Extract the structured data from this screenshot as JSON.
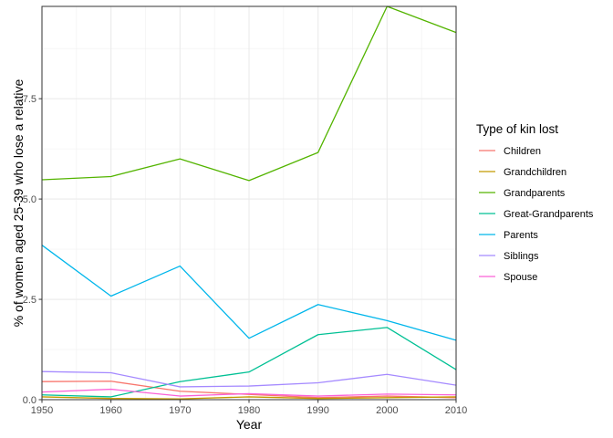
{
  "chart_data": {
    "type": "line",
    "xlabel": "Year",
    "ylabel": "% of women aged 25-39 who lose a relative",
    "xlim": [
      1950,
      2010
    ],
    "ylim": [
      0,
      9.8
    ],
    "x_ticks": [
      1950,
      1960,
      1970,
      1980,
      1990,
      2000,
      2010
    ],
    "y_ticks": [
      0,
      2.5,
      5,
      7.5
    ],
    "y_tick_labels": [
      "0.0",
      "2.5",
      "5.0",
      "7.5"
    ],
    "grid": true,
    "legend": {
      "title": "Type of kin lost",
      "position": "right"
    },
    "x": [
      1950,
      1960,
      1970,
      1980,
      1990,
      2000,
      2010
    ],
    "series": [
      {
        "name": "Children",
        "color": "#F8766D",
        "values": [
          0.45,
          0.46,
          0.21,
          0.13,
          0.05,
          0.09,
          0.05
        ]
      },
      {
        "name": "Grandchildren",
        "color": "#C49A00",
        "values": [
          0.07,
          0.03,
          0.02,
          0.07,
          0.03,
          0.05,
          0.07
        ]
      },
      {
        "name": "Grandparents",
        "color": "#53B400",
        "values": [
          5.48,
          5.56,
          6.0,
          5.46,
          6.16,
          9.8,
          9.15
        ]
      },
      {
        "name": "Great-Grandparents",
        "color": "#00C094",
        "values": [
          0.12,
          0.07,
          0.45,
          0.69,
          1.62,
          1.8,
          0.75
        ]
      },
      {
        "name": "Parents",
        "color": "#00B6EB",
        "values": [
          3.85,
          2.58,
          3.33,
          1.53,
          2.37,
          1.97,
          1.48
        ]
      },
      {
        "name": "Siblings",
        "color": "#A58AFF",
        "values": [
          0.7,
          0.67,
          0.32,
          0.34,
          0.42,
          0.63,
          0.36
        ]
      },
      {
        "name": "Spouse",
        "color": "#FB61D7",
        "values": [
          0.19,
          0.26,
          0.09,
          0.15,
          0.09,
          0.14,
          0.12
        ]
      }
    ]
  }
}
